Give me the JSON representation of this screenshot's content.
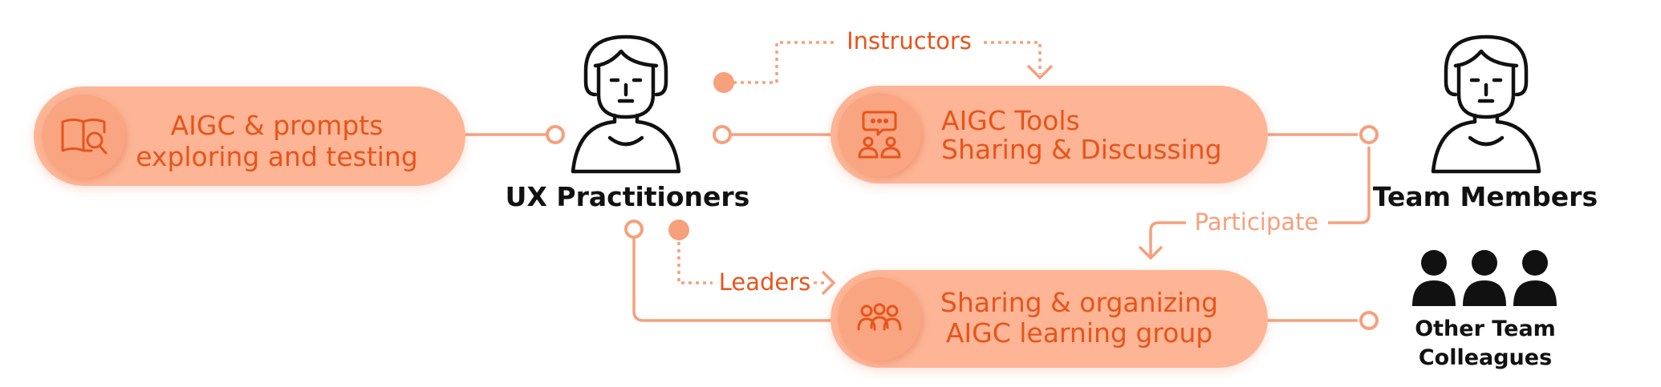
{
  "colors": {
    "pill_fill": "#fdb596",
    "pill_icon_bg": "#f9a582",
    "accent": "#e8541a",
    "connector": "#f6a07c",
    "text_dark": "#111111"
  },
  "nodes": {
    "explore": {
      "line1": "AIGC & prompts",
      "line2": "exploring and testing",
      "icon": "book-search-icon"
    },
    "tools": {
      "line1": "AIGC Tools",
      "line2": "Sharing & Discussing",
      "icon": "discussion-icon"
    },
    "group": {
      "line1": "Sharing & organizing",
      "line2": "AIGC learning group",
      "icon": "group-icon"
    }
  },
  "actors": {
    "ux": {
      "label": "UX Practitioners",
      "icon": "person-icon"
    },
    "team": {
      "label": "Team Members",
      "icon": "person-icon"
    },
    "others": {
      "line1": "Other Team",
      "line2": "Colleagues",
      "icon": "people-icon"
    }
  },
  "edges": {
    "instructors": "Instructors",
    "leaders": "Leaders",
    "participate": "Participate"
  }
}
